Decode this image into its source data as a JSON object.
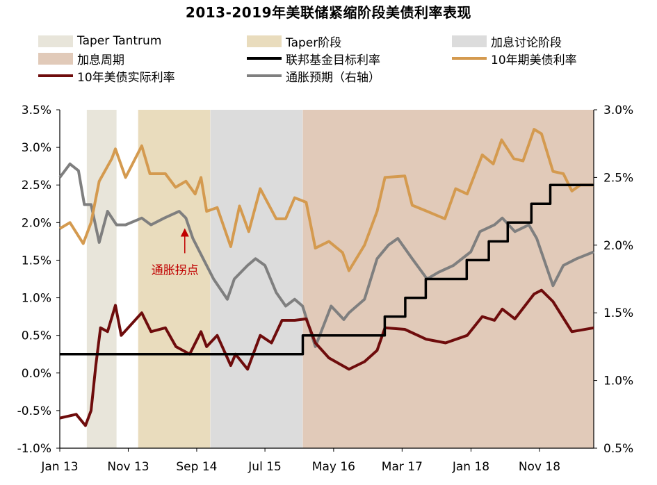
{
  "chart_data": {
    "type": "line",
    "title": "2013-2019年美联储紧缩阶段美债利率表现",
    "legend": [
      {
        "label": "Taper Tantrum",
        "kind": "band",
        "color": "#e8e5da"
      },
      {
        "label": "Taper阶段",
        "kind": "band",
        "color": "#e9dcbd"
      },
      {
        "label": "加息讨论阶段",
        "kind": "band",
        "color": "#dcdcdc"
      },
      {
        "label": "加息周期",
        "kind": "band",
        "color": "#e1cab9"
      },
      {
        "label": "联邦基金目标利率",
        "kind": "line",
        "color": "#000000"
      },
      {
        "label": "10年期美债利率",
        "kind": "line",
        "color": "#d49a4f"
      },
      {
        "label": "10年美债实际利率",
        "kind": "line",
        "color": "#6e0c0c"
      },
      {
        "label": "通胀预期（右轴）",
        "kind": "line",
        "color": "#7f7f7f"
      }
    ],
    "x_range": [
      "2013-01-01",
      "2019-06-30"
    ],
    "x_ticks": [
      {
        "date": "2013-01-01",
        "label": "Jan 13"
      },
      {
        "date": "2013-11-01",
        "label": "Nov 13"
      },
      {
        "date": "2014-09-01",
        "label": "Sep 14"
      },
      {
        "date": "2015-07-01",
        "label": "Jul 15"
      },
      {
        "date": "2016-05-01",
        "label": "May 16"
      },
      {
        "date": "2017-03-01",
        "label": "Mar 17"
      },
      {
        "date": "2018-01-01",
        "label": "Jan 18"
      },
      {
        "date": "2018-11-01",
        "label": "Nov 18"
      }
    ],
    "y_left": {
      "range": [
        -1.0,
        3.5
      ],
      "ticks": [
        "-1.0%",
        "-0.5%",
        "0.0%",
        "0.5%",
        "1.0%",
        "1.5%",
        "2.0%",
        "2.5%",
        "3.0%",
        "3.5%"
      ],
      "tick_values": [
        -1.0,
        -0.5,
        0.0,
        0.5,
        1.0,
        1.5,
        2.0,
        2.5,
        3.0,
        3.5
      ]
    },
    "y_right": {
      "range": [
        0.5,
        3.0
      ],
      "ticks": [
        "0.5%",
        "1.0%",
        "1.5%",
        "2.0%",
        "2.5%",
        "3.0%"
      ],
      "tick_values": [
        0.5,
        1.0,
        1.5,
        2.0,
        2.5,
        3.0
      ]
    },
    "bands": [
      {
        "name": "Taper Tantrum",
        "start": "2013-05-01",
        "end": "2013-09-10"
      },
      {
        "name": "Taper阶段",
        "start": "2013-12-15",
        "end": "2014-10-31"
      },
      {
        "name": "加息讨论阶段",
        "start": "2014-11-01",
        "end": "2015-12-15"
      },
      {
        "name": "加息周期",
        "start": "2015-12-16",
        "end": "2019-06-30"
      }
    ],
    "series": [
      {
        "name": "联邦基金目标利率",
        "axis": "left",
        "step": true,
        "points": [
          [
            "2013-01-01",
            0.25
          ],
          [
            "2015-12-16",
            0.5
          ],
          [
            "2016-12-14",
            0.75
          ],
          [
            "2017-03-15",
            1.0
          ],
          [
            "2017-06-14",
            1.25
          ],
          [
            "2017-12-13",
            1.5
          ],
          [
            "2018-03-21",
            1.75
          ],
          [
            "2018-06-13",
            2.0
          ],
          [
            "2018-09-26",
            2.25
          ],
          [
            "2018-12-19",
            2.5
          ],
          [
            "2019-06-30",
            2.5
          ]
        ]
      },
      {
        "name": "10年期美债利率",
        "axis": "left",
        "points": [
          [
            "2013-01-01",
            1.92
          ],
          [
            "2013-02-15",
            2.0
          ],
          [
            "2013-04-15",
            1.72
          ],
          [
            "2013-05-20",
            2.0
          ],
          [
            "2013-06-25",
            2.55
          ],
          [
            "2013-08-20",
            2.85
          ],
          [
            "2013-09-05",
            2.98
          ],
          [
            "2013-10-20",
            2.6
          ],
          [
            "2013-12-31",
            3.02
          ],
          [
            "2014-02-05",
            2.65
          ],
          [
            "2014-04-15",
            2.65
          ],
          [
            "2014-05-30",
            2.47
          ],
          [
            "2014-07-15",
            2.55
          ],
          [
            "2014-08-25",
            2.38
          ],
          [
            "2014-09-20",
            2.6
          ],
          [
            "2014-10-15",
            2.15
          ],
          [
            "2014-12-01",
            2.2
          ],
          [
            "2015-01-30",
            1.68
          ],
          [
            "2015-03-10",
            2.22
          ],
          [
            "2015-04-20",
            1.88
          ],
          [
            "2015-06-10",
            2.45
          ],
          [
            "2015-08-20",
            2.05
          ],
          [
            "2015-10-01",
            2.05
          ],
          [
            "2015-11-10",
            2.33
          ],
          [
            "2015-12-31",
            2.27
          ],
          [
            "2016-02-10",
            1.66
          ],
          [
            "2016-04-10",
            1.75
          ],
          [
            "2016-06-10",
            1.6
          ],
          [
            "2016-07-08",
            1.36
          ],
          [
            "2016-09-15",
            1.7
          ],
          [
            "2016-11-10",
            2.15
          ],
          [
            "2016-12-15",
            2.6
          ],
          [
            "2017-03-13",
            2.62
          ],
          [
            "2017-04-15",
            2.23
          ],
          [
            "2017-06-20",
            2.15
          ],
          [
            "2017-09-07",
            2.05
          ],
          [
            "2017-10-25",
            2.45
          ],
          [
            "2017-12-15",
            2.38
          ],
          [
            "2018-02-20",
            2.9
          ],
          [
            "2018-04-10",
            2.78
          ],
          [
            "2018-05-17",
            3.1
          ],
          [
            "2018-07-10",
            2.85
          ],
          [
            "2018-08-20",
            2.82
          ],
          [
            "2018-10-08",
            3.24
          ],
          [
            "2018-11-10",
            3.18
          ],
          [
            "2018-12-31",
            2.68
          ],
          [
            "2019-02-15",
            2.65
          ],
          [
            "2019-03-25",
            2.42
          ],
          [
            "2019-05-01",
            2.5
          ],
          [
            "2019-06-30",
            2.5
          ]
        ]
      },
      {
        "name": "10年美债实际利率",
        "axis": "left",
        "points": [
          [
            "2013-01-01",
            -0.6
          ],
          [
            "2013-03-15",
            -0.55
          ],
          [
            "2013-04-25",
            -0.7
          ],
          [
            "2013-05-20",
            -0.5
          ],
          [
            "2013-06-10",
            0.1
          ],
          [
            "2013-07-01",
            0.6
          ],
          [
            "2013-08-01",
            0.55
          ],
          [
            "2013-09-05",
            0.9
          ],
          [
            "2013-10-01",
            0.5
          ],
          [
            "2013-12-31",
            0.8
          ],
          [
            "2014-02-10",
            0.55
          ],
          [
            "2014-04-15",
            0.6
          ],
          [
            "2014-06-01",
            0.35
          ],
          [
            "2014-08-01",
            0.25
          ],
          [
            "2014-09-20",
            0.55
          ],
          [
            "2014-10-15",
            0.35
          ],
          [
            "2014-12-01",
            0.5
          ],
          [
            "2015-01-30",
            0.1
          ],
          [
            "2015-02-20",
            0.25
          ],
          [
            "2015-04-15",
            0.05
          ],
          [
            "2015-06-10",
            0.5
          ],
          [
            "2015-07-30",
            0.4
          ],
          [
            "2015-09-15",
            0.7
          ],
          [
            "2015-11-10",
            0.7
          ],
          [
            "2015-12-31",
            0.72
          ],
          [
            "2016-02-10",
            0.4
          ],
          [
            "2016-04-10",
            0.2
          ],
          [
            "2016-07-08",
            0.05
          ],
          [
            "2016-09-15",
            0.15
          ],
          [
            "2016-11-10",
            0.3
          ],
          [
            "2016-12-15",
            0.6
          ],
          [
            "2017-03-13",
            0.58
          ],
          [
            "2017-06-15",
            0.45
          ],
          [
            "2017-09-10",
            0.4
          ],
          [
            "2017-12-15",
            0.5
          ],
          [
            "2018-02-20",
            0.75
          ],
          [
            "2018-04-15",
            0.7
          ],
          [
            "2018-05-20",
            0.85
          ],
          [
            "2018-07-15",
            0.72
          ],
          [
            "2018-10-08",
            1.05
          ],
          [
            "2018-11-10",
            1.1
          ],
          [
            "2018-12-31",
            0.95
          ],
          [
            "2019-03-25",
            0.55
          ],
          [
            "2019-06-30",
            0.6
          ]
        ]
      },
      {
        "name": "通胀预期（右轴）",
        "axis": "right",
        "points": [
          [
            "2013-01-01",
            2.5
          ],
          [
            "2013-02-15",
            2.6
          ],
          [
            "2013-03-25",
            2.55
          ],
          [
            "2013-04-20",
            2.3
          ],
          [
            "2013-05-20",
            2.3
          ],
          [
            "2013-06-25",
            2.02
          ],
          [
            "2013-08-01",
            2.25
          ],
          [
            "2013-09-10",
            2.15
          ],
          [
            "2013-10-20",
            2.15
          ],
          [
            "2013-12-31",
            2.2
          ],
          [
            "2014-02-10",
            2.15
          ],
          [
            "2014-04-10",
            2.2
          ],
          [
            "2014-06-15",
            2.25
          ],
          [
            "2014-07-15",
            2.2
          ],
          [
            "2014-08-15",
            2.05
          ],
          [
            "2014-10-15",
            1.85
          ],
          [
            "2014-11-15",
            1.75
          ],
          [
            "2015-01-15",
            1.6
          ],
          [
            "2015-02-15",
            1.75
          ],
          [
            "2015-04-15",
            1.85
          ],
          [
            "2015-05-20",
            1.9
          ],
          [
            "2015-07-01",
            1.85
          ],
          [
            "2015-08-20",
            1.65
          ],
          [
            "2015-10-01",
            1.55
          ],
          [
            "2015-11-10",
            1.6
          ],
          [
            "2015-12-15",
            1.55
          ],
          [
            "2016-02-10",
            1.25
          ],
          [
            "2016-04-20",
            1.55
          ],
          [
            "2016-06-15",
            1.45
          ],
          [
            "2016-07-08",
            1.5
          ],
          [
            "2016-09-15",
            1.6
          ],
          [
            "2016-11-10",
            1.9
          ],
          [
            "2016-12-30",
            2.0
          ],
          [
            "2017-02-10",
            2.05
          ],
          [
            "2017-04-15",
            1.9
          ],
          [
            "2017-06-20",
            1.75
          ],
          [
            "2017-08-10",
            1.8
          ],
          [
            "2017-10-15",
            1.85
          ],
          [
            "2017-12-31",
            1.95
          ],
          [
            "2018-02-10",
            2.1
          ],
          [
            "2018-04-15",
            2.15
          ],
          [
            "2018-05-20",
            2.2
          ],
          [
            "2018-07-15",
            2.1
          ],
          [
            "2018-09-15",
            2.15
          ],
          [
            "2018-10-20",
            2.05
          ],
          [
            "2018-12-31",
            1.7
          ],
          [
            "2019-02-15",
            1.85
          ],
          [
            "2019-04-15",
            1.9
          ],
          [
            "2019-06-30",
            1.95
          ]
        ]
      }
    ],
    "annotations": [
      {
        "text": "通胀拐点",
        "date": "2014-07-10",
        "value": 1.5,
        "color": "#c00000"
      }
    ]
  }
}
